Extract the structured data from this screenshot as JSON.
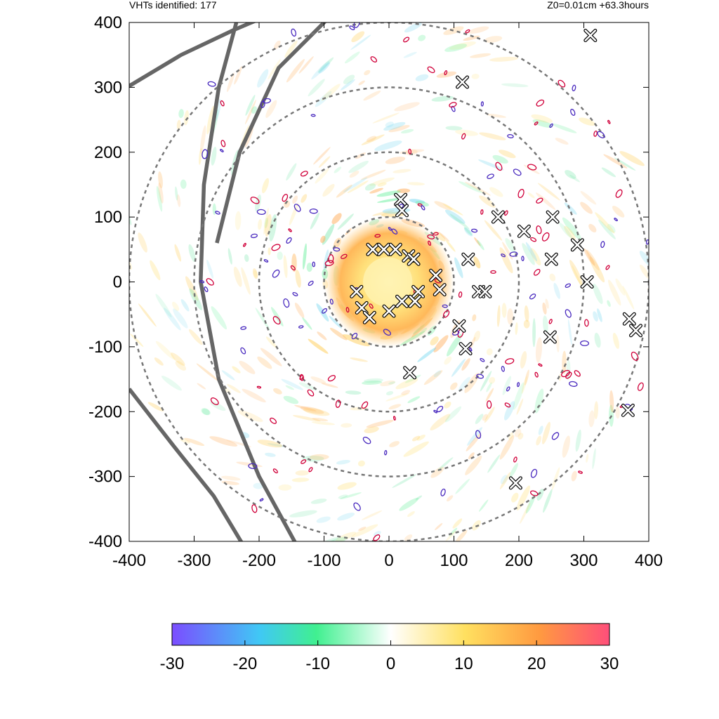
{
  "header": {
    "left_text": "VHTs identified: 177",
    "right_text": "Z0=0.01cm  +63.3hours"
  },
  "chart_data": {
    "type": "heatmap",
    "title": "",
    "xlabel": "",
    "ylabel": "",
    "xlim": [
      -400,
      400
    ],
    "ylim": [
      -400,
      400
    ],
    "x_ticks": [
      -400,
      -300,
      -200,
      -100,
      0,
      100,
      200,
      300,
      400
    ],
    "y_ticks": [
      -400,
      -300,
      -200,
      -100,
      0,
      100,
      200,
      300,
      400
    ],
    "grid": false,
    "range_rings": [
      100,
      200,
      300,
      400
    ],
    "vht_count": 177,
    "vht_markers": [
      [
        310,
        380
      ],
      [
        113,
        308
      ],
      [
        18,
        127
      ],
      [
        20,
        110
      ],
      [
        -25,
        50
      ],
      [
        -8,
        50
      ],
      [
        10,
        50
      ],
      [
        30,
        40
      ],
      [
        38,
        35
      ],
      [
        122,
        35
      ],
      [
        72,
        10
      ],
      [
        78,
        -12
      ],
      [
        45,
        -15
      ],
      [
        -50,
        -15
      ],
      [
        -42,
        -40
      ],
      [
        -30,
        -55
      ],
      [
        20,
        -30
      ],
      [
        40,
        -30
      ],
      [
        0,
        -45
      ],
      [
        138,
        -15
      ],
      [
        148,
        -15
      ],
      [
        168,
        100
      ],
      [
        208,
        78
      ],
      [
        252,
        100
      ],
      [
        290,
        57
      ],
      [
        250,
        35
      ],
      [
        305,
        0
      ],
      [
        370,
        -57
      ],
      [
        380,
        -75
      ],
      [
        108,
        -68
      ],
      [
        118,
        -103
      ],
      [
        248,
        -85
      ],
      [
        32,
        -140
      ],
      [
        368,
        -198
      ],
      [
        195,
        -310
      ]
    ],
    "colorbar": {
      "ticks": [
        -30,
        -20,
        -10,
        0,
        10,
        20,
        30
      ],
      "range": [
        -30,
        30
      ],
      "colors": [
        "#7b4dff",
        "#40d0f0",
        "#40f090",
        "#ffffff",
        "#ffe060",
        "#ff9040",
        "#ff4f7a"
      ]
    }
  }
}
